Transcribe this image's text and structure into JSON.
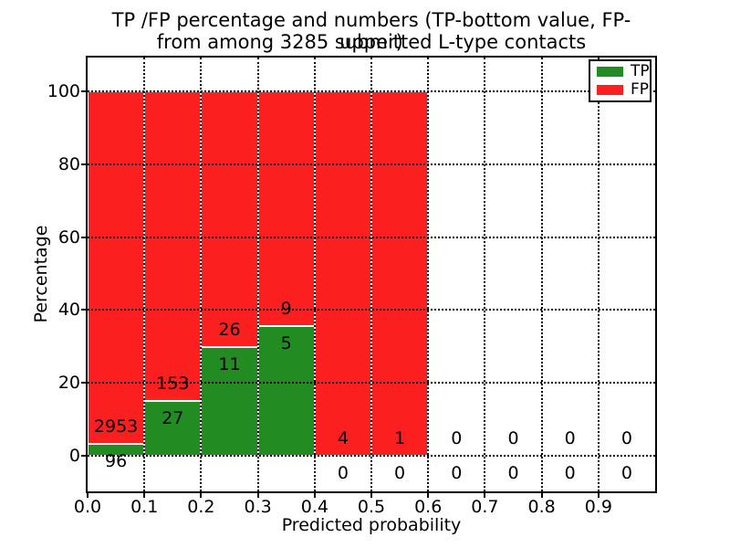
{
  "chart_data": {
    "type": "bar",
    "stacked_percent": true,
    "title_line1": "TP /FP percentage and numbers (TP-bottom value, FP-upper)",
    "title_line2": "from among 3285 submitted L-type contacts",
    "xlabel": "Predicted probability",
    "ylabel": "Percentage",
    "total_submitted_contacts": 3285,
    "bin_edges": [
      0.0,
      0.1,
      0.2,
      0.3,
      0.4,
      0.5,
      0.6,
      0.7,
      0.8,
      0.9,
      1.0
    ],
    "x_tick_labels": [
      "0.0",
      "0.1",
      "0.2",
      "0.3",
      "0.4",
      "0.5",
      "0.6",
      "0.7",
      "0.8",
      "0.9"
    ],
    "y_tick_values": [
      0,
      20,
      40,
      60,
      80,
      100
    ],
    "xlim": [
      0.0,
      1.0
    ],
    "ylim_note": "y axis shows 0-100 percent with margin above and below",
    "series": [
      {
        "name": "TP",
        "color": "#228b22",
        "counts": [
          96,
          27,
          11,
          5,
          0,
          0,
          0,
          0,
          0,
          0
        ]
      },
      {
        "name": "FP",
        "color": "#fc1f1f",
        "counts": [
          2953,
          153,
          26,
          9,
          4,
          1,
          0,
          0,
          0,
          0
        ]
      }
    ],
    "tp_percent_of_bin": [
      3.15,
      15.0,
      29.73,
      35.71,
      0.0,
      0.0,
      null,
      null,
      null,
      null
    ],
    "stack_top_percent": [
      100,
      100,
      100,
      100,
      100,
      100,
      null,
      null,
      null,
      null
    ],
    "legend_position": "upper right",
    "grid": {
      "style": "dotted",
      "color": "#000000"
    },
    "bar_edge_color": "#ffffff",
    "background_color": "#ffffff"
  }
}
